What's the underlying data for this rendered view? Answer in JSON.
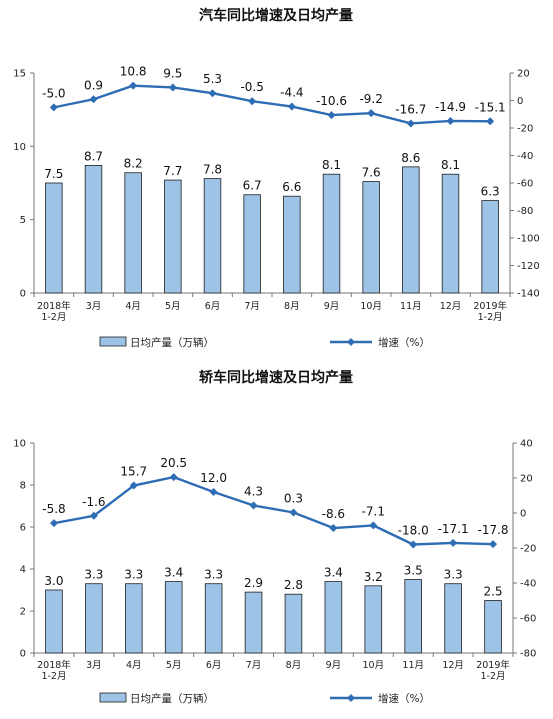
{
  "chart_data": [
    {
      "type": "bar+line",
      "title": "汽车同比增速及日均产量",
      "categories": [
        [
          "2018年",
          "1-2月"
        ],
        [
          "3月"
        ],
        [
          "4月"
        ],
        [
          "5月"
        ],
        [
          "6月"
        ],
        [
          "7月"
        ],
        [
          "8月"
        ],
        [
          "9月"
        ],
        [
          "10月"
        ],
        [
          "11月"
        ],
        [
          "12月"
        ],
        [
          "2019年",
          "1-2月"
        ]
      ],
      "series": [
        {
          "name": "日均产量（万辆）",
          "type": "bar",
          "axis": "left",
          "values": [
            7.5,
            8.7,
            8.2,
            7.7,
            7.8,
            6.7,
            6.6,
            8.1,
            7.6,
            8.6,
            8.1,
            6.3
          ],
          "labels": [
            "7.5",
            "8.7",
            "8.2",
            "7.7",
            "7.8",
            "6.7",
            "6.6",
            "8.1",
            "7.6",
            "8.6",
            "8.1",
            "6.3"
          ]
        },
        {
          "name": "增速（%）",
          "type": "line",
          "axis": "right",
          "values": [
            -5.0,
            0.9,
            10.8,
            9.5,
            5.3,
            -0.5,
            -4.4,
            -10.6,
            -9.2,
            -16.7,
            -14.9,
            -15.1
          ],
          "labels": [
            "-5.0",
            "0.9",
            "10.8",
            "9.5",
            "5.3",
            "-0.5",
            "-4.4",
            "-10.6",
            "-9.2",
            "-16.7",
            "-14.9",
            "-15.1"
          ]
        }
      ],
      "y_left": {
        "range": [
          0,
          15
        ],
        "ticks": [
          "0",
          "5",
          "10",
          "15"
        ],
        "tick_values": [
          0,
          5,
          10,
          15
        ]
      },
      "y_right": {
        "range": [
          -140,
          20
        ],
        "ticks": [
          "20",
          "0",
          "-20",
          "-40",
          "-60",
          "-80",
          "-100",
          "-120",
          "-140"
        ],
        "tick_values": [
          20,
          0,
          -20,
          -40,
          -60,
          -80,
          -100,
          -120,
          -140
        ]
      },
      "grid": false,
      "legend_position": "bottom",
      "colors": {
        "bar_fill": "#9dc3e6",
        "bar_stroke": "#1f1f1f",
        "line": "#2e6db4"
      }
    },
    {
      "type": "bar+line",
      "title": "轿车同比增速及日均产量",
      "categories": [
        [
          "2018年",
          "1-2月"
        ],
        [
          "3月"
        ],
        [
          "4月"
        ],
        [
          "5月"
        ],
        [
          "6月"
        ],
        [
          "7月"
        ],
        [
          "8月"
        ],
        [
          "9月"
        ],
        [
          "10月"
        ],
        [
          "11月"
        ],
        [
          "12月"
        ],
        [
          "2019年",
          "1-2月"
        ]
      ],
      "series": [
        {
          "name": "日均产量（万辆）",
          "type": "bar",
          "axis": "left",
          "values": [
            3.0,
            3.3,
            3.3,
            3.4,
            3.3,
            2.9,
            2.8,
            3.4,
            3.2,
            3.5,
            3.3,
            2.5
          ],
          "labels": [
            "3.0",
            "3.3",
            "3.3",
            "3.4",
            "3.3",
            "2.9",
            "2.8",
            "3.4",
            "3.2",
            "3.5",
            "3.3",
            "2.5"
          ]
        },
        {
          "name": "增速（%）",
          "type": "line",
          "axis": "right",
          "values": [
            -5.8,
            -1.6,
            15.7,
            20.5,
            12.0,
            4.3,
            0.3,
            -8.6,
            -7.1,
            -18.0,
            -17.1,
            -17.8
          ],
          "labels": [
            "-5.8",
            "-1.6",
            "15.7",
            "20.5",
            "12.0",
            "4.3",
            "0.3",
            "-8.6",
            "-7.1",
            "-18.0",
            "-17.1",
            "-17.8"
          ]
        }
      ],
      "y_left": {
        "range": [
          0,
          10
        ],
        "ticks": [
          "0",
          "2",
          "4",
          "6",
          "8",
          "10"
        ],
        "tick_values": [
          0,
          2,
          4,
          6,
          8,
          10
        ]
      },
      "y_right": {
        "range": [
          -80,
          40
        ],
        "ticks": [
          "40",
          "20",
          "0",
          "-20",
          "-40",
          "-60",
          "-80"
        ],
        "tick_values": [
          40,
          20,
          0,
          -20,
          -40,
          -60,
          -80
        ]
      },
      "grid": false,
      "legend_position": "bottom",
      "colors": {
        "bar_fill": "#9dc3e6",
        "bar_stroke": "#1f1f1f",
        "line": "#2e6db4"
      }
    }
  ]
}
